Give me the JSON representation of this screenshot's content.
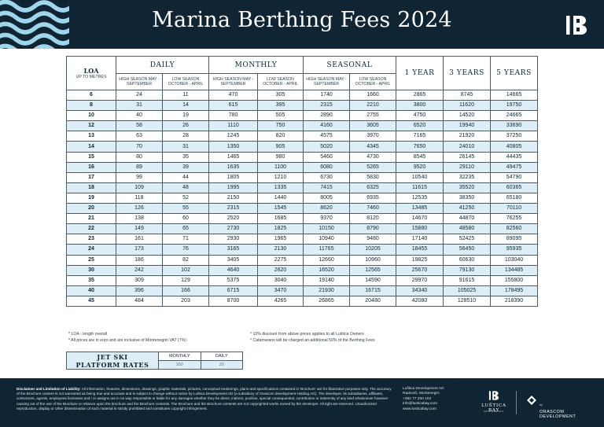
{
  "header": {
    "title": "Marina Berthing Fees 2024",
    "logo_icon": "lb-monogram-icon"
  },
  "table": {
    "loa_label": "LOA",
    "loa_sub": "UP TO METRES",
    "groups": {
      "daily": "DAILY",
      "monthly": "MONTHLY",
      "seasonal": "SEASONAL"
    },
    "high_season": "HIGH SEASON MAY - SEPTEMBER",
    "low_season": "LOW SEASON OCTOBER - APRIL",
    "year_headers": [
      "1 YEAR",
      "3 YEARS",
      "5 YEARS"
    ],
    "rows": [
      [
        "6",
        "24",
        "11",
        "470",
        "305",
        "1740",
        "1660",
        "2865",
        "8745",
        "14665"
      ],
      [
        "8",
        "31",
        "14",
        "615",
        "395",
        "2315",
        "2210",
        "3800",
        "11620",
        "19750"
      ],
      [
        "10",
        "40",
        "19",
        "780",
        "505",
        "2890",
        "2755",
        "4750",
        "14520",
        "24665"
      ],
      [
        "12",
        "58",
        "26",
        "1110",
        "750",
        "4160",
        "3605",
        "6520",
        "19940",
        "33690"
      ],
      [
        "13",
        "63",
        "28",
        "1245",
        "820",
        "4575",
        "3970",
        "7165",
        "21920",
        "37250"
      ],
      [
        "14",
        "70",
        "31",
        "1350",
        "905",
        "5020",
        "4345",
        "7650",
        "24010",
        "40805"
      ],
      [
        "15",
        "80",
        "35",
        "1465",
        "980",
        "5460",
        "4730",
        "8545",
        "26145",
        "44435"
      ],
      [
        "16",
        "89",
        "39",
        "1635",
        "1100",
        "6080",
        "5265",
        "9520",
        "29110",
        "49475"
      ],
      [
        "17",
        "99",
        "44",
        "1805",
        "1210",
        "6730",
        "5830",
        "10540",
        "32235",
        "54790"
      ],
      [
        "18",
        "109",
        "48",
        "1995",
        "1335",
        "7415",
        "6325",
        "11615",
        "35520",
        "60365"
      ],
      [
        "19",
        "118",
        "52",
        "2150",
        "1440",
        "8005",
        "6935",
        "12535",
        "38350",
        "65180"
      ],
      [
        "20",
        "126",
        "55",
        "2315",
        "1545",
        "8620",
        "7460",
        "13485",
        "41250",
        "70110"
      ],
      [
        "21",
        "138",
        "60",
        "2520",
        "1685",
        "9370",
        "8120",
        "14670",
        "44870",
        "76255"
      ],
      [
        "22",
        "149",
        "65",
        "2730",
        "1825",
        "10150",
        "8790",
        "15880",
        "48580",
        "82560"
      ],
      [
        "23",
        "161",
        "71",
        "2930",
        "1965",
        "10940",
        "9480",
        "17140",
        "52425",
        "89095"
      ],
      [
        "24",
        "173",
        "76",
        "3165",
        "2130",
        "11765",
        "10205",
        "18455",
        "56450",
        "95935"
      ],
      [
        "25",
        "186",
        "82",
        "3405",
        "2275",
        "12660",
        "10960",
        "19825",
        "60630",
        "103040"
      ],
      [
        "30",
        "242",
        "102",
        "4640",
        "2620",
        "16520",
        "12565",
        "25670",
        "79130",
        "134485"
      ],
      [
        "35",
        "309",
        "129",
        "5375",
        "3040",
        "19140",
        "14590",
        "29970",
        "91615",
        "155800"
      ],
      [
        "40",
        "396",
        "166",
        "6715",
        "3470",
        "21930",
        "16715",
        "34340",
        "105025",
        "178495"
      ],
      [
        "45",
        "484",
        "203",
        "8700",
        "4265",
        "26865",
        "20480",
        "42080",
        "128510",
        "218390"
      ]
    ]
  },
  "notes": {
    "left": [
      "* LOA - length overall",
      "* All prices are in euro and are inclusive of Montenegrin VAT (7%)"
    ],
    "right": [
      "* 10% discount from above prices applies to all Luštica Owners",
      "* Catamarans will be charged an additional 50% of the Berthing Fees"
    ]
  },
  "jet_ski": {
    "label_line1": "JET SKI",
    "label_line2": "PLATFORM RATES",
    "monthly_label": "MONTHLY",
    "daily_label": "DAILY",
    "monthly_value": "350",
    "daily_value": "20"
  },
  "footer": {
    "disclaimer_title": "Disclaimer and Limitation of Liability:",
    "disclaimer_text": "All information, features, dimensions, drawings, graphic materials, pictures, conceptual renderings, plans and specifications contained in 'Brochure' are for illustrative purposes only. The accuracy of the Brochure content is not warranted as being true and accurate and is subject to change without notice by Luštica Development AD (a subsidiary of Orascom development Holding AG). The developer, its subsidiaries, affiliates, contractors, agents, employees licensees and / or assigns are in no way responsible or liable for any damages whether they be direct, indirect, punitive, special consequential, contribution or indemnity of any kind whatsoever however causing out of the use of the Brochure or reliance upon the brochure and the Brochure contents. The Brochure and the Brochure contents are not copyrighted works owned by the developer. All right are reserved. Unauthorized reproduction, display or other dissemination of such material is strictly prohibited and constitutes copyright infringement.",
    "contact": [
      "Luštica Development AD",
      "Radovići, Montenegro",
      "+382 77 200 104",
      "info@lusticabay.com",
      "www.lusticabay.com"
    ],
    "brand_name": "LUŠTICA BAY",
    "brand_sub": "MONTENEGRO",
    "by_label": "by",
    "partner_name_1": "ORASCOM",
    "partner_name_2": "DEVELOPMENT"
  }
}
